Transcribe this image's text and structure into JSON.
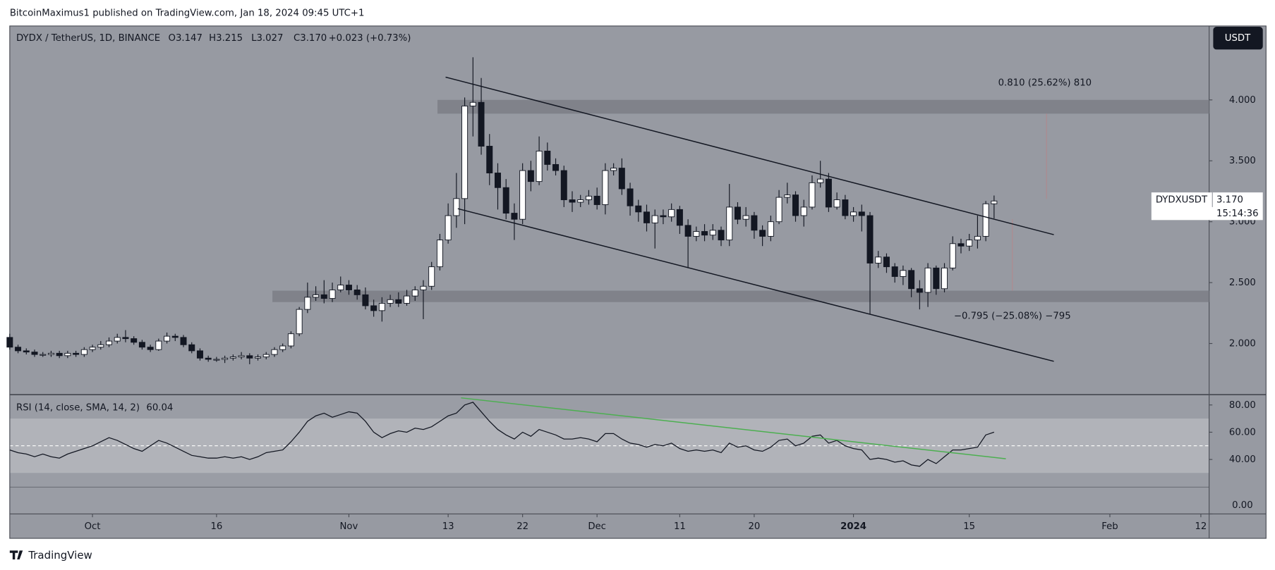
{
  "page": {
    "published": "BitcoinMaximus1 published on TradingView.com, Jan 18, 2024 09:45 UTC+1",
    "logo": "TradingView",
    "currency_button": "USDT"
  },
  "legend": {
    "symbol": "DYDX / TetherUS, 1D, BINANCE",
    "items": [
      "O3.147",
      "H3.215",
      "L3.027",
      "C3.170",
      "+0.023 (+0.73%)"
    ]
  },
  "price_label": {
    "symbol": "DYDXUSDT",
    "price": "3.170",
    "countdown": "15:14:36"
  },
  "annotations": {
    "upper": "0.810 (25.62%) 810",
    "lower": "−0.795 (−25.08%) −795"
  },
  "chart_data": [
    {
      "type": "candlestick",
      "x": [
        "2023-09-21",
        "2023-09-22",
        "2023-09-23",
        "2023-09-24",
        "2023-09-25",
        "2023-09-26",
        "2023-09-27",
        "2023-09-28",
        "2023-09-29",
        "2023-09-30",
        "2023-10-01",
        "2023-10-02",
        "2023-10-03",
        "2023-10-04",
        "2023-10-05",
        "2023-10-06",
        "2023-10-07",
        "2023-10-08",
        "2023-10-09",
        "2023-10-10",
        "2023-10-11",
        "2023-10-12",
        "2023-10-13",
        "2023-10-14",
        "2023-10-15",
        "2023-10-16",
        "2023-10-17",
        "2023-10-18",
        "2023-10-19",
        "2023-10-20",
        "2023-10-21",
        "2023-10-22",
        "2023-10-23",
        "2023-10-24",
        "2023-10-25",
        "2023-10-26",
        "2023-10-27",
        "2023-10-28",
        "2023-10-29",
        "2023-10-30",
        "2023-10-31",
        "2023-11-01",
        "2023-11-02",
        "2023-11-03",
        "2023-11-04",
        "2023-11-05",
        "2023-11-06",
        "2023-11-07",
        "2023-11-08",
        "2023-11-09",
        "2023-11-10",
        "2023-11-11",
        "2023-11-12",
        "2023-11-13",
        "2023-11-14",
        "2023-11-15",
        "2023-11-16",
        "2023-11-17",
        "2023-11-18",
        "2023-11-19",
        "2023-11-20",
        "2023-11-21",
        "2023-11-22",
        "2023-11-23",
        "2023-11-24",
        "2023-11-25",
        "2023-11-26",
        "2023-11-27",
        "2023-11-28",
        "2023-11-29",
        "2023-11-30",
        "2023-12-01",
        "2023-12-02",
        "2023-12-03",
        "2023-12-04",
        "2023-12-05",
        "2023-12-06",
        "2023-12-07",
        "2023-12-08",
        "2023-12-09",
        "2023-12-10",
        "2023-12-11",
        "2023-12-12",
        "2023-12-13",
        "2023-12-14",
        "2023-12-15",
        "2023-12-16",
        "2023-12-17",
        "2023-12-18",
        "2023-12-19",
        "2023-12-20",
        "2023-12-21",
        "2023-12-22",
        "2023-12-23",
        "2023-12-24",
        "2023-12-25",
        "2023-12-26",
        "2023-12-27",
        "2023-12-28",
        "2023-12-29",
        "2023-12-30",
        "2023-12-31",
        "2024-01-01",
        "2024-01-02",
        "2024-01-03",
        "2024-01-04",
        "2024-01-05",
        "2024-01-06",
        "2024-01-07",
        "2024-01-08",
        "2024-01-09",
        "2024-01-10",
        "2024-01-11",
        "2024-01-12",
        "2024-01-13",
        "2024-01-14",
        "2024-01-15",
        "2024-01-16",
        "2024-01-17",
        "2024-01-18"
      ],
      "open": [
        2.05,
        1.97,
        1.94,
        1.93,
        1.91,
        1.91,
        1.92,
        1.9,
        1.92,
        1.91,
        1.95,
        1.97,
        1.99,
        2.02,
        2.05,
        2.04,
        2.01,
        1.97,
        1.95,
        2.02,
        2.06,
        2.05,
        1.99,
        1.94,
        1.88,
        1.87,
        1.87,
        1.88,
        1.89,
        1.9,
        1.88,
        1.89,
        1.91,
        1.95,
        1.98,
        2.08,
        2.28,
        2.38,
        2.4,
        2.37,
        2.44,
        2.48,
        2.44,
        2.4,
        2.31,
        2.27,
        2.33,
        2.36,
        2.33,
        2.39,
        2.44,
        2.47,
        2.63,
        2.85,
        3.05,
        3.19,
        3.95,
        3.98,
        3.62,
        3.4,
        3.28,
        3.07,
        3.02,
        3.42,
        3.33,
        3.58,
        3.47,
        3.42,
        3.18,
        3.16,
        3.18,
        3.21,
        3.14,
        3.42,
        3.44,
        3.27,
        3.13,
        3.08,
        2.99,
        3.05,
        3.04,
        3.1,
        2.97,
        2.88,
        2.92,
        2.89,
        2.93,
        2.85,
        3.12,
        3.02,
        3.05,
        2.93,
        2.88,
        3.0,
        3.2,
        3.22,
        3.05,
        3.12,
        3.32,
        3.35,
        3.12,
        3.18,
        3.05,
        3.08,
        3.05,
        2.66,
        2.71,
        2.63,
        2.55,
        2.6,
        2.45,
        2.42,
        2.62,
        2.45,
        2.62,
        2.82,
        2.8,
        2.85,
        2.88,
        3.147
      ],
      "high": [
        2.08,
        1.99,
        1.96,
        1.95,
        1.93,
        1.94,
        1.94,
        1.94,
        1.94,
        1.97,
        1.99,
        2.02,
        2.05,
        2.08,
        2.11,
        2.06,
        2.03,
        1.99,
        2.04,
        2.09,
        2.08,
        2.07,
        2.01,
        1.96,
        1.9,
        1.89,
        1.9,
        1.91,
        1.93,
        1.92,
        1.91,
        1.93,
        1.97,
        2.0,
        2.1,
        2.3,
        2.5,
        2.47,
        2.52,
        2.5,
        2.55,
        2.52,
        2.48,
        2.46,
        2.36,
        2.38,
        2.4,
        2.42,
        2.44,
        2.47,
        2.52,
        2.67,
        2.9,
        3.15,
        3.4,
        4.02,
        4.35,
        4.18,
        3.72,
        3.48,
        3.35,
        3.15,
        3.48,
        3.5,
        3.7,
        3.65,
        3.52,
        3.46,
        3.25,
        3.22,
        3.26,
        3.28,
        3.48,
        3.48,
        3.52,
        3.32,
        3.18,
        3.14,
        3.1,
        3.1,
        3.15,
        3.13,
        3.02,
        2.96,
        2.98,
        2.98,
        2.96,
        3.31,
        3.16,
        3.12,
        3.08,
        2.97,
        3.05,
        3.26,
        3.32,
        3.25,
        3.18,
        3.38,
        3.5,
        3.4,
        3.24,
        3.22,
        3.12,
        3.14,
        3.08,
        2.76,
        2.74,
        2.66,
        2.64,
        2.62,
        2.52,
        2.66,
        2.64,
        2.66,
        2.88,
        2.86,
        2.9,
        3.05,
        3.17,
        3.215
      ],
      "low": [
        1.95,
        1.92,
        1.91,
        1.89,
        1.89,
        1.89,
        1.88,
        1.88,
        1.89,
        1.89,
        1.93,
        1.95,
        1.97,
        2.0,
        2.01,
        1.99,
        1.95,
        1.93,
        1.94,
        2.0,
        2.02,
        1.97,
        1.92,
        1.86,
        1.85,
        1.85,
        1.84,
        1.86,
        1.87,
        1.83,
        1.86,
        1.87,
        1.89,
        1.93,
        1.96,
        2.06,
        2.25,
        2.35,
        2.33,
        2.34,
        2.42,
        2.4,
        2.36,
        2.28,
        2.22,
        2.18,
        2.3,
        2.3,
        2.31,
        2.35,
        2.2,
        2.44,
        2.6,
        2.82,
        2.95,
        2.98,
        3.7,
        3.55,
        3.3,
        3.1,
        3.02,
        2.85,
        2.98,
        3.25,
        3.3,
        3.42,
        3.38,
        3.12,
        3.08,
        3.12,
        3.14,
        3.1,
        3.06,
        3.38,
        3.22,
        3.05,
        3.0,
        2.92,
        2.78,
        2.98,
        3.0,
        2.9,
        2.62,
        2.84,
        2.84,
        2.85,
        2.8,
        2.8,
        2.98,
        2.96,
        2.86,
        2.8,
        2.84,
        2.98,
        3.15,
        3.0,
        2.96,
        3.1,
        3.28,
        3.08,
        3.1,
        3.02,
        3.0,
        2.92,
        2.24,
        2.62,
        2.58,
        2.5,
        2.48,
        2.38,
        2.28,
        2.3,
        2.4,
        2.42,
        2.6,
        2.74,
        2.76,
        2.78,
        2.84,
        3.027
      ],
      "close": [
        1.97,
        1.94,
        1.93,
        1.91,
        1.91,
        1.92,
        1.9,
        1.92,
        1.91,
        1.95,
        1.97,
        1.99,
        2.02,
        2.05,
        2.04,
        2.01,
        1.97,
        1.95,
        2.02,
        2.06,
        2.05,
        1.99,
        1.94,
        1.88,
        1.87,
        1.87,
        1.88,
        1.89,
        1.9,
        1.88,
        1.89,
        1.91,
        1.95,
        1.98,
        2.08,
        2.28,
        2.38,
        2.4,
        2.37,
        2.44,
        2.48,
        2.44,
        2.4,
        2.31,
        2.27,
        2.33,
        2.36,
        2.33,
        2.39,
        2.44,
        2.47,
        2.63,
        2.85,
        3.05,
        3.19,
        3.95,
        3.98,
        3.62,
        3.4,
        3.28,
        3.07,
        3.02,
        3.42,
        3.33,
        3.58,
        3.47,
        3.42,
        3.18,
        3.16,
        3.18,
        3.21,
        3.14,
        3.42,
        3.44,
        3.27,
        3.13,
        3.08,
        2.99,
        3.05,
        3.04,
        3.1,
        2.97,
        2.88,
        2.92,
        2.89,
        2.93,
        2.85,
        3.12,
        3.02,
        3.05,
        2.93,
        2.88,
        3.0,
        3.2,
        3.22,
        3.05,
        3.12,
        3.32,
        3.35,
        3.12,
        3.18,
        3.05,
        3.08,
        3.05,
        2.66,
        2.71,
        2.63,
        2.55,
        2.6,
        2.45,
        2.42,
        2.62,
        2.45,
        2.62,
        2.82,
        2.8,
        2.85,
        2.88,
        3.147,
        3.17
      ],
      "up_color": "#ffffff",
      "down_color": "#131722",
      "xlim": [
        "2023-09-21",
        "2024-02-13"
      ],
      "xticks": [
        {
          "value": "2023-10-01",
          "label": "Oct"
        },
        {
          "value": "2023-10-16",
          "label": "16"
        },
        {
          "value": "2023-11-01",
          "label": "Nov"
        },
        {
          "value": "2023-11-13",
          "label": "13"
        },
        {
          "value": "2023-11-22",
          "label": "22"
        },
        {
          "value": "2023-12-01",
          "label": "Dec"
        },
        {
          "value": "2023-12-11",
          "label": "11"
        },
        {
          "value": "2023-12-20",
          "label": "20"
        },
        {
          "value": "2024-01-01",
          "label": "2024"
        },
        {
          "value": "2024-01-15",
          "label": "15"
        },
        {
          "value": "2024-02-01",
          "label": "Feb"
        },
        {
          "value": "2024-02-12",
          "label": "12"
        }
      ],
      "ylim": [
        1.587,
        4.607
      ],
      "yticks": [
        {
          "value": 2,
          "label": "2.000"
        },
        {
          "value": 2.5,
          "label": "2.500"
        },
        {
          "value": 3,
          "label": "3.000"
        },
        {
          "value": 3.5,
          "label": "3.500"
        },
        {
          "value": 4,
          "label": "4.000"
        }
      ],
      "grid": false
    },
    {
      "type": "line",
      "x": [
        "2023-09-21",
        "2023-09-22",
        "2023-09-23",
        "2023-09-24",
        "2023-09-25",
        "2023-09-26",
        "2023-09-27",
        "2023-09-28",
        "2023-09-29",
        "2023-09-30",
        "2023-10-01",
        "2023-10-02",
        "2023-10-03",
        "2023-10-04",
        "2023-10-05",
        "2023-10-06",
        "2023-10-07",
        "2023-10-08",
        "2023-10-09",
        "2023-10-10",
        "2023-10-11",
        "2023-10-12",
        "2023-10-13",
        "2023-10-14",
        "2023-10-15",
        "2023-10-16",
        "2023-10-17",
        "2023-10-18",
        "2023-10-19",
        "2023-10-20",
        "2023-10-21",
        "2023-10-22",
        "2023-10-23",
        "2023-10-24",
        "2023-10-25",
        "2023-10-26",
        "2023-10-27",
        "2023-10-28",
        "2023-10-29",
        "2023-10-30",
        "2023-10-31",
        "2023-11-01",
        "2023-11-02",
        "2023-11-03",
        "2023-11-04",
        "2023-11-05",
        "2023-11-06",
        "2023-11-07",
        "2023-11-08",
        "2023-11-09",
        "2023-11-10",
        "2023-11-11",
        "2023-11-12",
        "2023-11-13",
        "2023-11-14",
        "2023-11-15",
        "2023-11-16",
        "2023-11-17",
        "2023-11-18",
        "2023-11-19",
        "2023-11-20",
        "2023-11-21",
        "2023-11-22",
        "2023-11-23",
        "2023-11-24",
        "2023-11-25",
        "2023-11-26",
        "2023-11-27",
        "2023-11-28",
        "2023-11-29",
        "2023-11-30",
        "2023-12-01",
        "2023-12-02",
        "2023-12-03",
        "2023-12-04",
        "2023-12-05",
        "2023-12-06",
        "2023-12-07",
        "2023-12-08",
        "2023-12-09",
        "2023-12-10",
        "2023-12-11",
        "2023-12-12",
        "2023-12-13",
        "2023-12-14",
        "2023-12-15",
        "2023-12-16",
        "2023-12-17",
        "2023-12-18",
        "2023-12-19",
        "2023-12-20",
        "2023-12-21",
        "2023-12-22",
        "2023-12-23",
        "2023-12-24",
        "2023-12-25",
        "2023-12-26",
        "2023-12-27",
        "2023-12-28",
        "2023-12-29",
        "2023-12-30",
        "2023-12-31",
        "2024-01-01",
        "2024-01-02",
        "2024-01-03",
        "2024-01-04",
        "2024-01-05",
        "2024-01-06",
        "2024-01-07",
        "2024-01-08",
        "2024-01-09",
        "2024-01-10",
        "2024-01-11",
        "2024-01-12",
        "2024-01-13",
        "2024-01-14",
        "2024-01-15",
        "2024-01-16",
        "2024-01-17",
        "2024-01-18"
      ],
      "series": [
        {
          "name": "RSI (14, close, SMA, 14, 2)",
          "color": "#131722",
          "values": [
            47,
            45,
            44,
            42,
            44,
            42,
            41,
            44,
            46,
            48,
            50,
            53,
            56,
            54,
            51,
            48,
            46,
            50,
            54,
            52,
            49,
            46,
            43,
            42,
            41,
            41,
            42,
            41,
            42,
            40,
            42,
            45,
            46,
            47,
            53,
            60,
            68,
            72,
            74,
            71,
            73,
            75,
            74,
            68,
            60,
            56,
            59,
            61,
            60,
            63,
            62,
            64,
            68,
            72,
            74,
            80,
            82,
            75,
            68,
            62,
            58,
            55,
            60,
            57,
            62,
            60,
            58,
            55,
            55,
            56,
            55,
            53,
            59,
            59,
            55,
            52,
            51,
            49,
            51,
            50,
            52,
            48,
            46,
            47,
            46,
            47,
            45,
            52,
            49,
            50,
            47,
            46,
            49,
            54,
            55,
            50,
            52,
            57,
            58,
            52,
            54,
            50,
            48,
            47,
            40,
            41,
            40,
            38,
            39,
            36,
            35,
            40,
            37,
            42,
            47,
            47,
            48,
            49,
            58,
            60.04
          ]
        }
      ],
      "xlim": [
        "2023-09-21",
        "2024-02-13"
      ],
      "ylim": [
        0,
        87
      ],
      "yticks": [
        {
          "value": 80,
          "label": "80.00"
        },
        {
          "value": 60,
          "label": "60.00"
        },
        {
          "value": 40,
          "label": "40.00"
        },
        {
          "value": 0,
          "label": "0.00"
        }
      ],
      "grid": false
    }
  ]
}
